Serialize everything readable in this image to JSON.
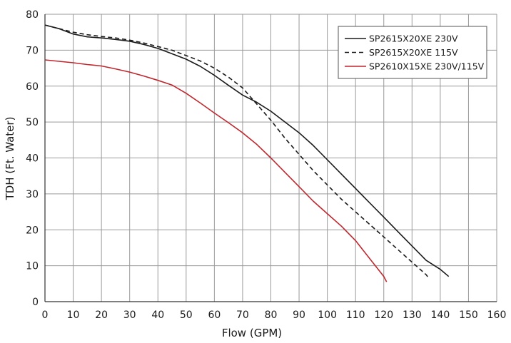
{
  "chart_data": {
    "type": "line",
    "title": "",
    "xlabel": "Flow (GPM)",
    "ylabel": "TDH (Ft. Water)",
    "xlim": [
      0,
      160
    ],
    "ylim": [
      0,
      80
    ],
    "xticks": [
      0,
      10,
      20,
      30,
      40,
      50,
      60,
      70,
      80,
      90,
      100,
      110,
      120,
      130,
      140,
      150,
      160
    ],
    "yticks": [
      0,
      10,
      20,
      30,
      40,
      50,
      60,
      70,
      80
    ],
    "grid": true,
    "legend_position": "top-right",
    "series": [
      {
        "name": "SP2615X20XE 230V",
        "color": "#1a1a1a",
        "dash": "solid",
        "points": [
          [
            0,
            77
          ],
          [
            5,
            76
          ],
          [
            10,
            74.5
          ],
          [
            15,
            73.7
          ],
          [
            20,
            73.4
          ],
          [
            25,
            73
          ],
          [
            30,
            72.5
          ],
          [
            35,
            71.6
          ],
          [
            40,
            70.5
          ],
          [
            45,
            69
          ],
          [
            50,
            67.5
          ],
          [
            55,
            65.5
          ],
          [
            60,
            63
          ],
          [
            65,
            60.2
          ],
          [
            70,
            57.5
          ],
          [
            75,
            55.5
          ],
          [
            80,
            53
          ],
          [
            85,
            50
          ],
          [
            90,
            47
          ],
          [
            95,
            43.5
          ],
          [
            100,
            39.5
          ],
          [
            105,
            35.5
          ],
          [
            110,
            31.5
          ],
          [
            115,
            27.5
          ],
          [
            120,
            23.5
          ],
          [
            125,
            19.5
          ],
          [
            130,
            15.5
          ],
          [
            135,
            11.5
          ],
          [
            140,
            9
          ],
          [
            143,
            7
          ]
        ]
      },
      {
        "name": "SP2615X20XE 115V",
        "color": "#1a1a1a",
        "dash": "dashed",
        "points": [
          [
            0,
            77
          ],
          [
            5,
            76
          ],
          [
            10,
            75
          ],
          [
            15,
            74.3
          ],
          [
            20,
            73.8
          ],
          [
            25,
            73.4
          ],
          [
            30,
            72.8
          ],
          [
            35,
            72
          ],
          [
            40,
            71
          ],
          [
            45,
            70
          ],
          [
            50,
            68.5
          ],
          [
            55,
            67
          ],
          [
            60,
            65
          ],
          [
            65,
            62.5
          ],
          [
            70,
            59.5
          ],
          [
            75,
            55
          ],
          [
            80,
            50.5
          ],
          [
            85,
            45.5
          ],
          [
            90,
            41
          ],
          [
            95,
            36.5
          ],
          [
            100,
            32.5
          ],
          [
            105,
            28.5
          ],
          [
            110,
            25
          ],
          [
            115,
            21.5
          ],
          [
            120,
            18
          ],
          [
            125,
            14.5
          ],
          [
            130,
            11
          ],
          [
            135,
            7.5
          ],
          [
            136,
            6.5
          ]
        ]
      },
      {
        "name": "SP2610X15XE 230V/115V",
        "color": "#c0272d",
        "dash": "solid",
        "points": [
          [
            0,
            67.3
          ],
          [
            5,
            66.9
          ],
          [
            10,
            66.5
          ],
          [
            15,
            66
          ],
          [
            20,
            65.6
          ],
          [
            25,
            64.8
          ],
          [
            30,
            63.9
          ],
          [
            35,
            62.8
          ],
          [
            40,
            61.6
          ],
          [
            45,
            60.3
          ],
          [
            50,
            58
          ],
          [
            55,
            55.3
          ],
          [
            60,
            52.5
          ],
          [
            65,
            49.8
          ],
          [
            70,
            47
          ],
          [
            75,
            43.8
          ],
          [
            80,
            40
          ],
          [
            85,
            36
          ],
          [
            90,
            32
          ],
          [
            95,
            28
          ],
          [
            100,
            24.5
          ],
          [
            105,
            21
          ],
          [
            110,
            17
          ],
          [
            115,
            12
          ],
          [
            120,
            7
          ],
          [
            121,
            5.5
          ]
        ]
      }
    ]
  }
}
